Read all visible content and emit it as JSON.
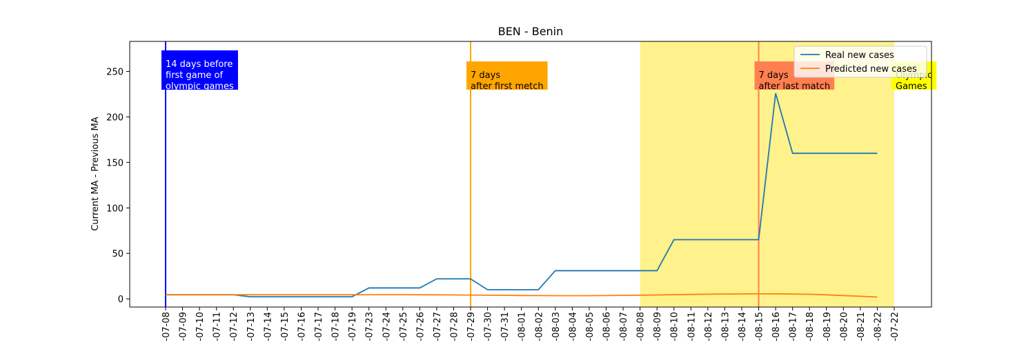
{
  "chart_data": {
    "type": "line",
    "title": "BEN - Benin",
    "y_label": "Current MA - Previous MA",
    "categories": [
      "-07-08",
      "-07-09",
      "-07-10",
      "-07-11",
      "-07-12",
      "-07-13",
      "-07-14",
      "-07-15",
      "-07-16",
      "-07-17",
      "-07-18",
      "-07-19",
      "-07-23",
      "-07-24",
      "-07-25",
      "-07-26",
      "-07-27",
      "-07-28",
      "-07-29",
      "-07-30",
      "-07-31",
      "-08-01",
      "-08-02",
      "-08-03",
      "-08-04",
      "-08-05",
      "-08-06",
      "-08-07",
      "-08-08",
      "-08-09",
      "-08-10",
      "-08-11",
      "-08-12",
      "-08-13",
      "-08-14",
      "-08-15",
      "-08-16",
      "-08-17",
      "-08-18",
      "-08-19",
      "-08-20",
      "-08-21",
      "-08-22",
      "-07-22"
    ],
    "series": [
      {
        "name": "Real new cases",
        "color": "#1f77b4",
        "values": [
          4.5,
          4.5,
          4.5,
          4.5,
          4.5,
          2.3,
          2.3,
          2.3,
          2.3,
          2.3,
          2.3,
          2.3,
          12,
          12,
          12,
          12,
          22,
          22,
          22,
          10,
          10,
          10,
          10,
          31,
          31,
          31,
          31,
          31,
          31,
          31,
          65,
          65,
          65,
          65,
          65,
          65,
          226,
          160,
          160,
          160,
          160,
          160,
          160,
          null
        ]
      },
      {
        "name": "Predicted new cases",
        "color": "#ff7f0e",
        "values": [
          4.5,
          4.5,
          4.5,
          4.5,
          4.5,
          4.5,
          4.5,
          4.5,
          4.5,
          4.5,
          4.5,
          4.5,
          4.6,
          4.6,
          4.6,
          4.5,
          4.4,
          4.3,
          4.2,
          4.0,
          3.9,
          3.7,
          3.6,
          3.5,
          3.5,
          3.5,
          3.6,
          3.8,
          4.0,
          4.3,
          4.6,
          4.9,
          5.1,
          5.3,
          5.4,
          5.5,
          5.5,
          5.3,
          5.0,
          4.4,
          3.6,
          2.8,
          2.0,
          null
        ]
      }
    ],
    "ylim": [
      -9,
      283
    ],
    "yticks": [
      0,
      50,
      100,
      150,
      200,
      250
    ],
    "span": {
      "start": "-08-08",
      "end": "-07-22",
      "color": "#fff080",
      "lines": [
        "Olympic",
        "Games"
      ],
      "box_color": "#ffff00",
      "text_color": "#000000"
    },
    "vlines": [
      {
        "x": "-07-08",
        "color": "#0000ff",
        "lines": [
          "14 days before",
          "first game of",
          "olympic games"
        ],
        "text_color": "#ffffff"
      },
      {
        "x": "-07-29",
        "color": "#ffa500",
        "lines": [
          "7 days",
          "after first metch"
        ],
        "text_color": "#000000"
      },
      {
        "x": "-08-15",
        "color": "#ff7f50",
        "lines": [
          "7 days",
          "after last match"
        ],
        "text_color": "#000000"
      }
    ],
    "legend": "upper right"
  }
}
